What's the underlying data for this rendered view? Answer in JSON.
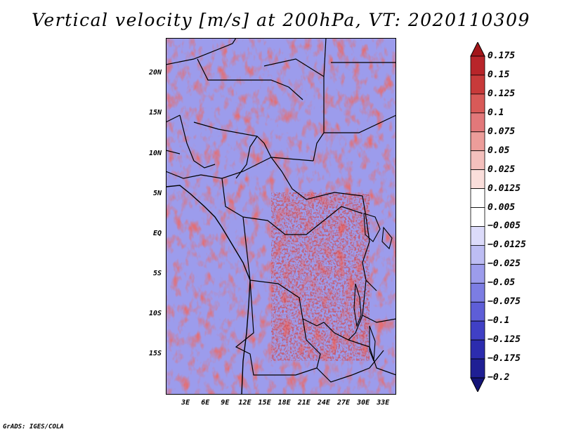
{
  "title": "Vertical velocity [m/s] at 200hPa, VT: 2020110309",
  "credit": "GrADS: IGES/COLA",
  "map": {
    "type": "shaded contour field",
    "region": "Central Africa",
    "lat_labels": [
      "20N",
      "15N",
      "10N",
      "5N",
      "EQ",
      "5S",
      "10S",
      "15S"
    ],
    "lat_values": [
      20,
      15,
      10,
      5,
      0,
      -5,
      -10,
      -15
    ],
    "lon_labels": [
      "3E",
      "6E",
      "9E",
      "12E",
      "15E",
      "18E",
      "21E",
      "24E",
      "27E",
      "30E",
      "33E"
    ],
    "lon_values": [
      3,
      6,
      9,
      12,
      15,
      18,
      21,
      24,
      27,
      30,
      33
    ],
    "lon_range": [
      0,
      35
    ],
    "lat_range": [
      -20,
      24.5
    ],
    "positive_color": "#c0282d",
    "negative_color": "#3e3fc4"
  },
  "colorbar": {
    "labels": [
      "0.175",
      "0.15",
      "0.125",
      "0.1",
      "0.075",
      "0.05",
      "0.025",
      "0.0125",
      "0.005",
      "−0.005",
      "−0.0125",
      "−0.025",
      "−0.05",
      "−0.075",
      "−0.1",
      "−0.125",
      "−0.175",
      "−0.2"
    ],
    "colors": [
      "#a3161a",
      "#b8252a",
      "#c83a3a",
      "#d85a58",
      "#e2787a",
      "#ec9d9a",
      "#f4c0bd",
      "#fadedb",
      "#ffffff",
      "#ffffff",
      "#dcdbfa",
      "#bdbdf3",
      "#9c9cec",
      "#7c7de3",
      "#5e5ed7",
      "#4040c5",
      "#2c2cae",
      "#1f1f94",
      "#141478"
    ]
  }
}
